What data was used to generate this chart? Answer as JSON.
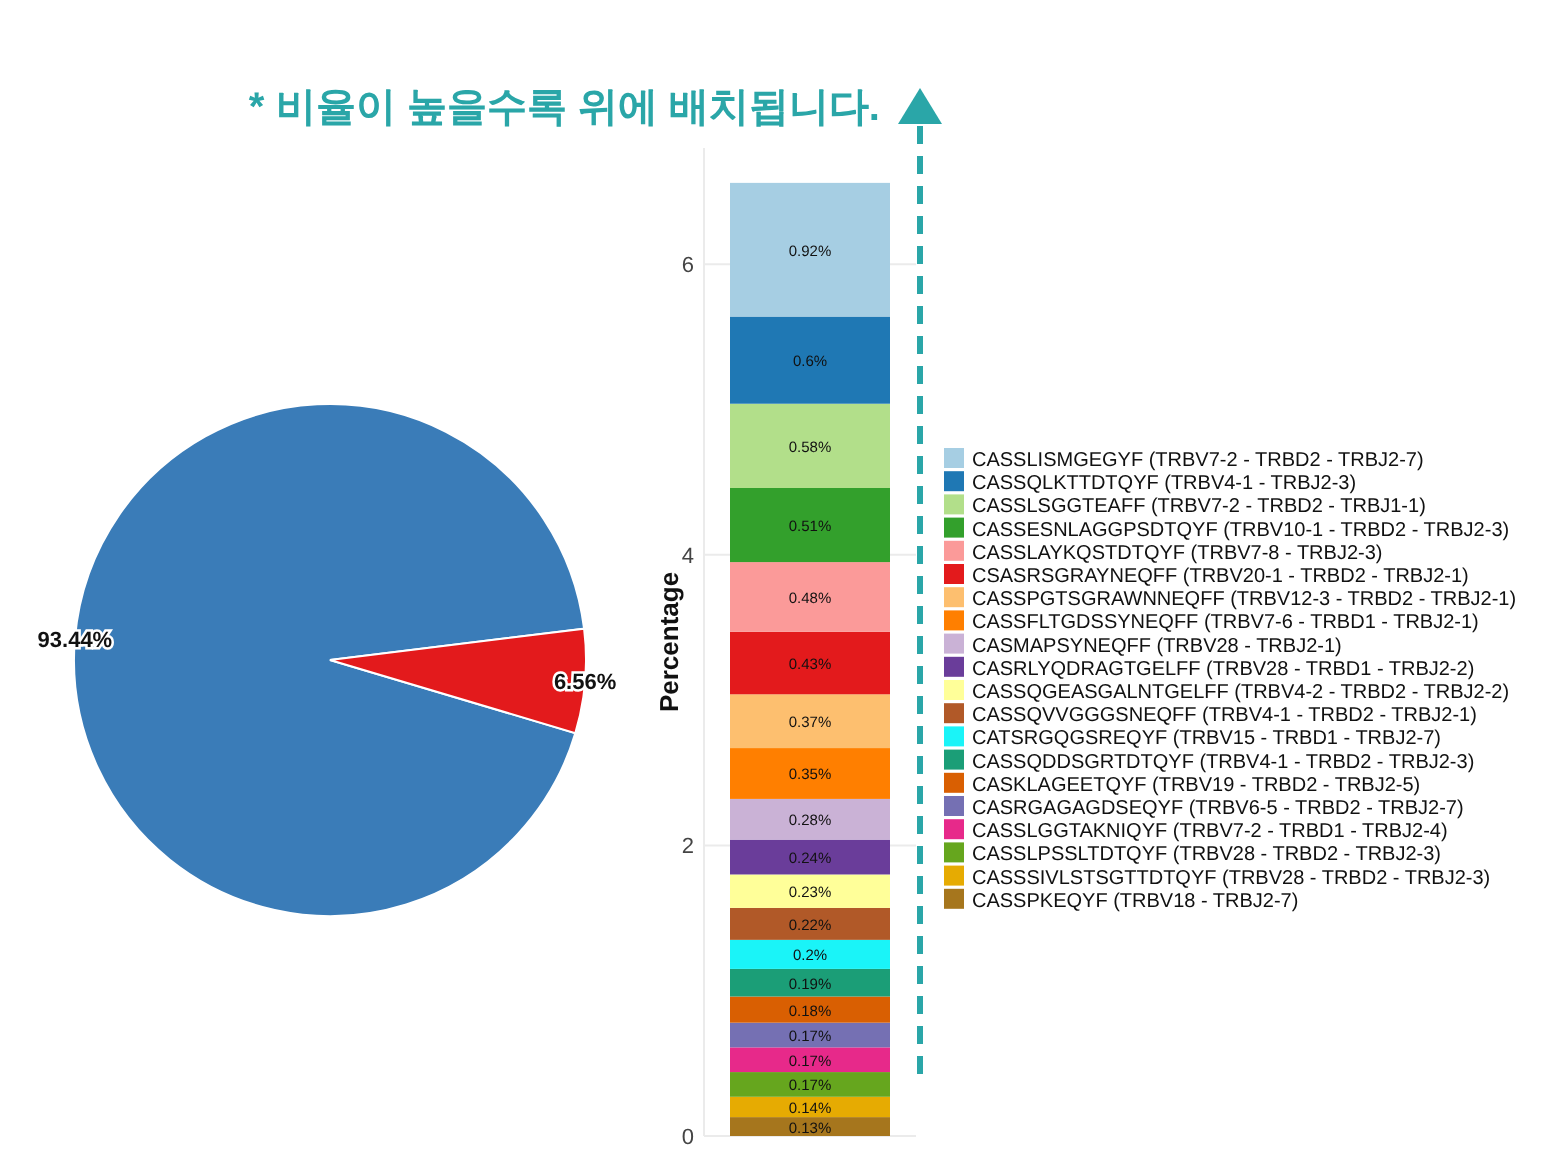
{
  "chart_data": [
    {
      "type": "pie",
      "categories": [
        null,
        null
      ],
      "values": [
        93.44,
        6.56
      ],
      "colors": [
        "#3a7cb8",
        "#e31a1c"
      ],
      "value_labels": [
        "93.44%",
        "6.56%"
      ]
    },
    {
      "type": "bar",
      "stacked": true,
      "categories": [
        null
      ],
      "ylabel": "Percentage",
      "ylim": [
        0,
        6.8
      ],
      "yticks": [
        0,
        2,
        4,
        6
      ],
      "grid": "y",
      "legend": "right",
      "annotations": [
        "* 비율이 높을수록 위에 배치됩니다."
      ],
      "series": [
        {
          "name": "CASSPKEQYF (TRBV18 - TRBJ2-7)",
          "color": "#a6761d",
          "values": [
            0.13
          ],
          "value_labels": [
            "0.13%"
          ]
        },
        {
          "name": "CASSSIVLSTSGTTDTQYF (TRBV28 - TRBD2 - TRBJ2-3)",
          "color": "#e6ab02",
          "values": [
            0.14
          ],
          "value_labels": [
            "0.14%"
          ]
        },
        {
          "name": "CASSLPSSLTDTQYF (TRBV28 - TRBD2 - TRBJ2-3)",
          "color": "#66a61e",
          "values": [
            0.17
          ],
          "value_labels": [
            "0.17%"
          ]
        },
        {
          "name": "CASSLGGTAKNIQYF (TRBV7-2 - TRBD1 - TRBJ2-4)",
          "color": "#e7298a",
          "values": [
            0.17
          ],
          "value_labels": [
            "0.17%"
          ]
        },
        {
          "name": "CASRGAGAGDSEQYF (TRBV6-5 - TRBD2 - TRBJ2-7)",
          "color": "#7570b3",
          "values": [
            0.17
          ],
          "value_labels": [
            "0.17%"
          ]
        },
        {
          "name": "CASKLAGEETQYF (TRBV19 - TRBD2 - TRBJ2-5)",
          "color": "#d95f02",
          "values": [
            0.18
          ],
          "value_labels": [
            "0.18%"
          ]
        },
        {
          "name": "CASSQDDSGRTDTQYF (TRBV4-1 - TRBD2 - TRBJ2-3)",
          "color": "#1b9e77",
          "values": [
            0.19
          ],
          "value_labels": [
            "0.19%"
          ]
        },
        {
          "name": "CATSRGQGSREQYF (TRBV15 - TRBD1 - TRBJ2-7)",
          "color": "#1af4f8",
          "values": [
            0.2
          ],
          "value_labels": [
            "0.2%"
          ]
        },
        {
          "name": "CASSQVVGGGSNEQFF (TRBV4-1 - TRBD2 - TRBJ2-1)",
          "color": "#b15928",
          "values": [
            0.22
          ],
          "value_labels": [
            "0.22%"
          ]
        },
        {
          "name": "CASSQGEASGALNTGELFF (TRBV4-2 - TRBD2 - TRBJ2-2)",
          "color": "#ffff99",
          "values": [
            0.23
          ],
          "value_labels": [
            "0.23%"
          ]
        },
        {
          "name": "CASRLYQDRAGTGELFF (TRBV28 - TRBD1 - TRBJ2-2)",
          "color": "#6a3d9a",
          "values": [
            0.24
          ],
          "value_labels": [
            "0.24%"
          ]
        },
        {
          "name": "CASMAPSYNEQFF (TRBV28 - TRBJ2-1)",
          "color": "#cab2d6",
          "values": [
            0.28
          ],
          "value_labels": [
            "0.28%"
          ]
        },
        {
          "name": "CASSFLTGDSSYNEQFF (TRBV7-6 - TRBD1 - TRBJ2-1)",
          "color": "#ff7f00",
          "values": [
            0.35
          ],
          "value_labels": [
            "0.35%"
          ]
        },
        {
          "name": "CASSPGTSGRAWNNEQFF (TRBV12-3 - TRBD2 - TRBJ2-1)",
          "color": "#fdbf6f",
          "values": [
            0.37
          ],
          "value_labels": [
            "0.37%"
          ]
        },
        {
          "name": "CSASRSGRAYNEQFF (TRBV20-1 - TRBD2 - TRBJ2-1)",
          "color": "#e31a1c",
          "values": [
            0.43
          ],
          "value_labels": [
            "0.43%"
          ]
        },
        {
          "name": "CASSLAYKQSTDTQYF (TRBV7-8 - TRBJ2-3)",
          "color": "#fb9a99",
          "values": [
            0.48
          ],
          "value_labels": [
            "0.48%"
          ]
        },
        {
          "name": "CASSESNLAGGPSDTQYF (TRBV10-1 - TRBD2 - TRBJ2-3)",
          "color": "#33a02c",
          "values": [
            0.51
          ],
          "value_labels": [
            "0.51%"
          ]
        },
        {
          "name": "CASSLSGGTEAFF (TRBV7-2 - TRBD2 - TRBJ1-1)",
          "color": "#b2df8a",
          "values": [
            0.58
          ],
          "value_labels": [
            "0.58%"
          ]
        },
        {
          "name": "CASSQLKTTDTQYF (TRBV4-1 - TRBJ2-3)",
          "color": "#1f78b4",
          "values": [
            0.6
          ],
          "value_labels": [
            "0.6%"
          ]
        },
        {
          "name": "CASSLISMGEGYF (TRBV7-2 - TRBD2 - TRBJ2-7)",
          "color": "#a6cee3",
          "values": [
            0.92
          ],
          "value_labels": [
            "0.92%"
          ]
        }
      ]
    }
  ]
}
